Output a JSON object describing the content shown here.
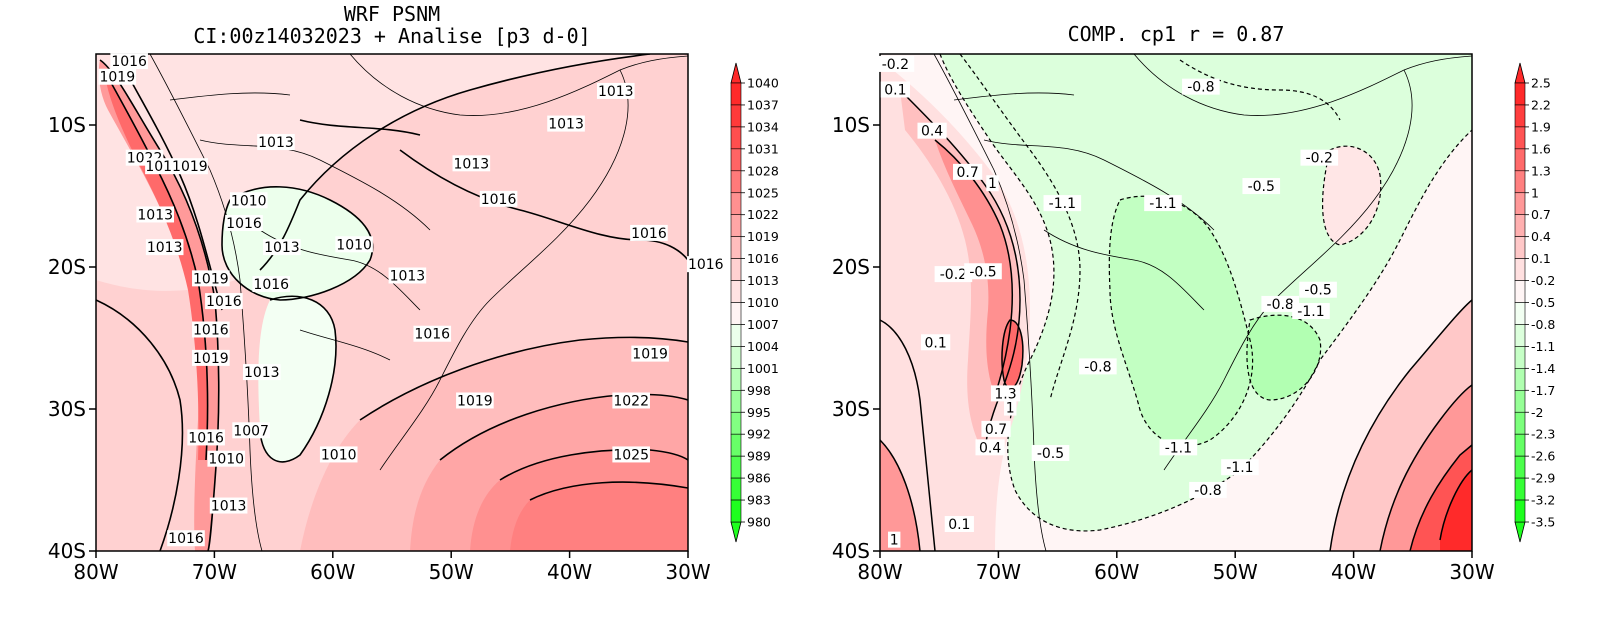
{
  "panels": [
    {
      "id": "psnm",
      "title_lines": [
        "WRF PSNM",
        "CI:00z14032023 + Analise  [p3 d-0]"
      ],
      "x_ticks": [
        "80W",
        "70W",
        "60W",
        "50W",
        "40W",
        "30W"
      ],
      "y_ticks": [
        "10S",
        "20S",
        "30S",
        "40S"
      ],
      "colorbar": {
        "labels": [
          "1040",
          "1037",
          "1034",
          "1031",
          "1028",
          "1025",
          "1022",
          "1019",
          "1016",
          "1013",
          "1010",
          "1007",
          "1004",
          "1001",
          "998",
          "995",
          "992",
          "989",
          "986",
          "983",
          "980"
        ],
        "colors": [
          "#ff2a2a",
          "#ff3a3a",
          "#ff4e4e",
          "#ff6464",
          "#ff7a7a",
          "#ff9090",
          "#ffa6a6",
          "#ffbdbd",
          "#ffd1d1",
          "#ffe3e3",
          "#fff4f4",
          "#ecffec",
          "#d2ffd2",
          "#b8ffb8",
          "#9cff9c",
          "#82ff82",
          "#68ff68",
          "#4eff4e",
          "#36ff36",
          "#1eff1e"
        ]
      },
      "contour_labels": [
        {
          "text": "1016",
          "lon": -77.2,
          "lat": -5.5
        },
        {
          "text": "1019",
          "lon": -78.2,
          "lat": -6.6
        },
        {
          "text": "1022",
          "lon": -75.9,
          "lat": -12.3
        },
        {
          "text": "1011019",
          "lon": -73.2,
          "lat": -12.9
        },
        {
          "text": "1013",
          "lon": -64.8,
          "lat": -11.2
        },
        {
          "text": "1013",
          "lon": -48.3,
          "lat": -12.7
        },
        {
          "text": "1013",
          "lon": -40.3,
          "lat": -9.9
        },
        {
          "text": "1013",
          "lon": -36.1,
          "lat": -7.6
        },
        {
          "text": "1010",
          "lon": -67.1,
          "lat": -15.3
        },
        {
          "text": "1013",
          "lon": -75.0,
          "lat": -16.3
        },
        {
          "text": "1016",
          "lon": -67.5,
          "lat": -16.9
        },
        {
          "text": "1016",
          "lon": -46.0,
          "lat": -15.2
        },
        {
          "text": "1016",
          "lon": -33.3,
          "lat": -17.6
        },
        {
          "text": "1016",
          "lon": -28.5,
          "lat": -19.8
        },
        {
          "text": "1013",
          "lon": -74.2,
          "lat": -18.6
        },
        {
          "text": "1013",
          "lon": -64.3,
          "lat": -18.6
        },
        {
          "text": "1010",
          "lon": -58.2,
          "lat": -18.4
        },
        {
          "text": "1013",
          "lon": -53.7,
          "lat": -20.6
        },
        {
          "text": "1019",
          "lon": -70.3,
          "lat": -20.8
        },
        {
          "text": "1016",
          "lon": -69.2,
          "lat": -22.4
        },
        {
          "text": "1016",
          "lon": -65.2,
          "lat": -21.2
        },
        {
          "text": "1016",
          "lon": -70.3,
          "lat": -24.4
        },
        {
          "text": "1016",
          "lon": -51.6,
          "lat": -24.7
        },
        {
          "text": "1019",
          "lon": -33.2,
          "lat": -26.1
        },
        {
          "text": "1019",
          "lon": -70.3,
          "lat": -26.4
        },
        {
          "text": "1013",
          "lon": -66.0,
          "lat": -27.4
        },
        {
          "text": "1019",
          "lon": -48.0,
          "lat": -29.4
        },
        {
          "text": "1022",
          "lon": -34.8,
          "lat": -29.4
        },
        {
          "text": "1016",
          "lon": -70.7,
          "lat": -32.0
        },
        {
          "text": "1007",
          "lon": -66.9,
          "lat": -31.5
        },
        {
          "text": "1010",
          "lon": -69.0,
          "lat": -33.5
        },
        {
          "text": "1010",
          "lon": -59.5,
          "lat": -33.2
        },
        {
          "text": "1025",
          "lon": -34.8,
          "lat": -33.2
        },
        {
          "text": "1013",
          "lon": -68.8,
          "lat": -36.8
        },
        {
          "text": "1016",
          "lon": -72.4,
          "lat": -39.1
        }
      ]
    },
    {
      "id": "comp",
      "title_lines": [
        "COMP. cp1  r =  0.87"
      ],
      "x_ticks": [
        "80W",
        "70W",
        "60W",
        "50W",
        "40W",
        "30W"
      ],
      "y_ticks": [
        "10S",
        "20S",
        "30S",
        "40S"
      ],
      "colorbar": {
        "labels": [
          "2.5",
          "2.2",
          "1.9",
          "1.6",
          "1.3",
          "1",
          "0.7",
          "0.4",
          "0.1",
          "-0.2",
          "-0.5",
          "-0.8",
          "-1.1",
          "-1.4",
          "-1.7",
          "-2",
          "-2.3",
          "-2.6",
          "-2.9",
          "-3.2",
          "-3.5"
        ],
        "colors": [
          "#ff2a2a",
          "#ff3e3e",
          "#ff5454",
          "#ff6a6a",
          "#ff8080",
          "#ff9898",
          "#ffb0b0",
          "#ffc8c8",
          "#ffe0e0",
          "#fff5f5",
          "#f2fff2",
          "#dcffdc",
          "#c6ffc6",
          "#b0ffb0",
          "#96ff96",
          "#7cff7c",
          "#64ff64",
          "#4cff4c",
          "#36ff36",
          "#1eff1e"
        ]
      },
      "contour_labels": [
        {
          "text": "-0.2",
          "lon": -78.7,
          "lat": -5.7
        },
        {
          "text": "0.1",
          "lon": -78.7,
          "lat": -7.5
        },
        {
          "text": "0.4",
          "lon": -75.6,
          "lat": -10.4
        },
        {
          "text": "-0.8",
          "lon": -52.9,
          "lat": -7.3
        },
        {
          "text": "-0.2",
          "lon": -42.9,
          "lat": -12.3
        },
        {
          "text": "0.7",
          "lon": -72.6,
          "lat": -13.3
        },
        {
          "text": "1",
          "lon": -70.5,
          "lat": -14.1
        },
        {
          "text": "-0.5",
          "lon": -47.8,
          "lat": -14.3
        },
        {
          "text": "-1.1",
          "lon": -64.6,
          "lat": -15.5
        },
        {
          "text": "-1.1",
          "lon": -56.1,
          "lat": -15.5
        },
        {
          "text": "-0.2",
          "lon": -73.8,
          "lat": -20.5
        },
        {
          "text": "-0.5",
          "lon": -71.3,
          "lat": -20.3
        },
        {
          "text": "-0.8",
          "lon": -46.2,
          "lat": -22.6
        },
        {
          "text": "-0.5",
          "lon": -43.0,
          "lat": -21.6
        },
        {
          "text": "-1.1",
          "lon": -43.6,
          "lat": -23.1
        },
        {
          "text": "0.1",
          "lon": -75.3,
          "lat": -25.3
        },
        {
          "text": "-0.8",
          "lon": -61.6,
          "lat": -27.0
        },
        {
          "text": "1.3",
          "lon": -69.4,
          "lat": -28.9
        },
        {
          "text": "1",
          "lon": -69.0,
          "lat": -29.9
        },
        {
          "text": "0.7",
          "lon": -70.2,
          "lat": -31.4
        },
        {
          "text": "0.4",
          "lon": -70.7,
          "lat": -32.7
        },
        {
          "text": "-0.5",
          "lon": -65.6,
          "lat": -33.1
        },
        {
          "text": "-1.1",
          "lon": -54.8,
          "lat": -32.7
        },
        {
          "text": "-1.1",
          "lon": -49.6,
          "lat": -34.1
        },
        {
          "text": "-0.8",
          "lon": -52.3,
          "lat": -35.7
        },
        {
          "text": "0.1",
          "lon": -73.3,
          "lat": -38.1
        },
        {
          "text": "1",
          "lon": -78.8,
          "lat": -39.2
        }
      ]
    }
  ]
}
